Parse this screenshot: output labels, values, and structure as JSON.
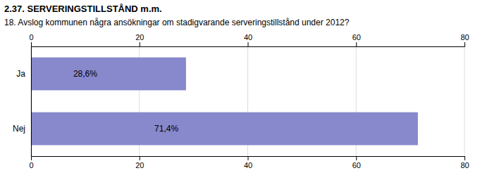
{
  "chart_data": {
    "type": "bar",
    "orientation": "horizontal",
    "title": "2.37. SERVERINGSTILLSTÅND m.m.",
    "subtitle": "18. Avslog kommunen några ansökningar om stadigvarande serveringstillstånd under 2012?",
    "categories": [
      "Ja",
      "Nej"
    ],
    "values": [
      28.6,
      71.4
    ],
    "value_labels": [
      "28,6%",
      "71,4%"
    ],
    "data_labels": true,
    "color": "#8888cc",
    "xlim": [
      0,
      80
    ],
    "xticks": [
      0,
      20,
      40,
      60,
      80
    ],
    "grid": true
  }
}
